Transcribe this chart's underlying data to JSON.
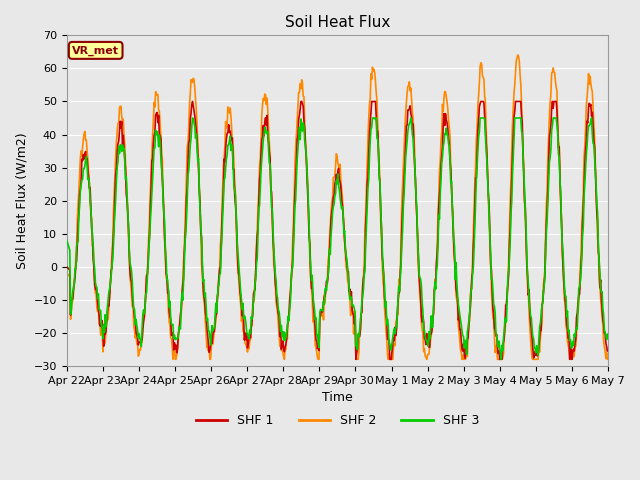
{
  "title": "Soil Heat Flux",
  "xlabel": "Time",
  "ylabel": "Soil Heat Flux (W/m2)",
  "ylim": [
    -30,
    70
  ],
  "yticks": [
    -30,
    -20,
    -10,
    0,
    10,
    20,
    30,
    40,
    50,
    60,
    70
  ],
  "background_color": "#e8e8e8",
  "plot_bg_color": "#e8e8e8",
  "grid_color": "#ffffff",
  "colors": {
    "SHF 1": "#cc0000",
    "SHF 2": "#ff8800",
    "SHF 3": "#00cc00"
  },
  "legend_label": "VR_met",
  "x_tick_labels": [
    "Apr 22",
    "Apr 23",
    "Apr 24",
    "Apr 25",
    "Apr 26",
    "Apr 27",
    "Apr 28",
    "Apr 29",
    "Apr 30",
    "May 1",
    "May 2",
    "May 3",
    "May 4",
    "May 5",
    "May 6",
    "May 7"
  ],
  "n_days": 15,
  "line_width": 1.2
}
